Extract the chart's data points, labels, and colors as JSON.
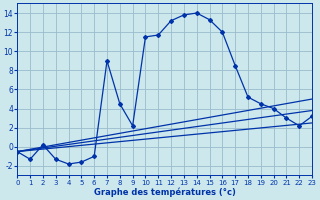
{
  "bg_color": "#cce8ec",
  "grid_color": "#99bbcc",
  "line_color": "#0033aa",
  "xlabel": "Graphe des températures (°c)",
  "xlim": [
    0,
    23
  ],
  "ylim": [
    -3,
    15
  ],
  "yticks": [
    -2,
    0,
    2,
    4,
    6,
    8,
    10,
    12,
    14
  ],
  "xticks": [
    0,
    1,
    2,
    3,
    4,
    5,
    6,
    7,
    8,
    9,
    10,
    11,
    12,
    13,
    14,
    15,
    16,
    17,
    18,
    19,
    20,
    21,
    22,
    23
  ],
  "main_x": [
    0,
    1,
    2,
    3,
    4,
    5,
    6,
    7,
    8,
    9,
    10,
    11,
    12,
    13,
    14,
    15,
    16,
    17,
    18,
    19,
    20,
    21,
    22,
    23
  ],
  "main_y": [
    -0.5,
    -1.3,
    0.2,
    -1.3,
    -1.8,
    -1.6,
    -1.0,
    9.0,
    4.5,
    2.2,
    11.5,
    11.7,
    13.2,
    13.8,
    14.0,
    13.3,
    12.0,
    8.5,
    5.2,
    4.5,
    4.0,
    3.0,
    2.2,
    3.2
  ],
  "line1_x": [
    0,
    23
  ],
  "line1_y": [
    -0.5,
    5.0
  ],
  "line2_x": [
    0,
    23
  ],
  "line2_y": [
    -0.5,
    3.8
  ],
  "line3_x": [
    0,
    23
  ],
  "line3_y": [
    -0.5,
    2.5
  ]
}
